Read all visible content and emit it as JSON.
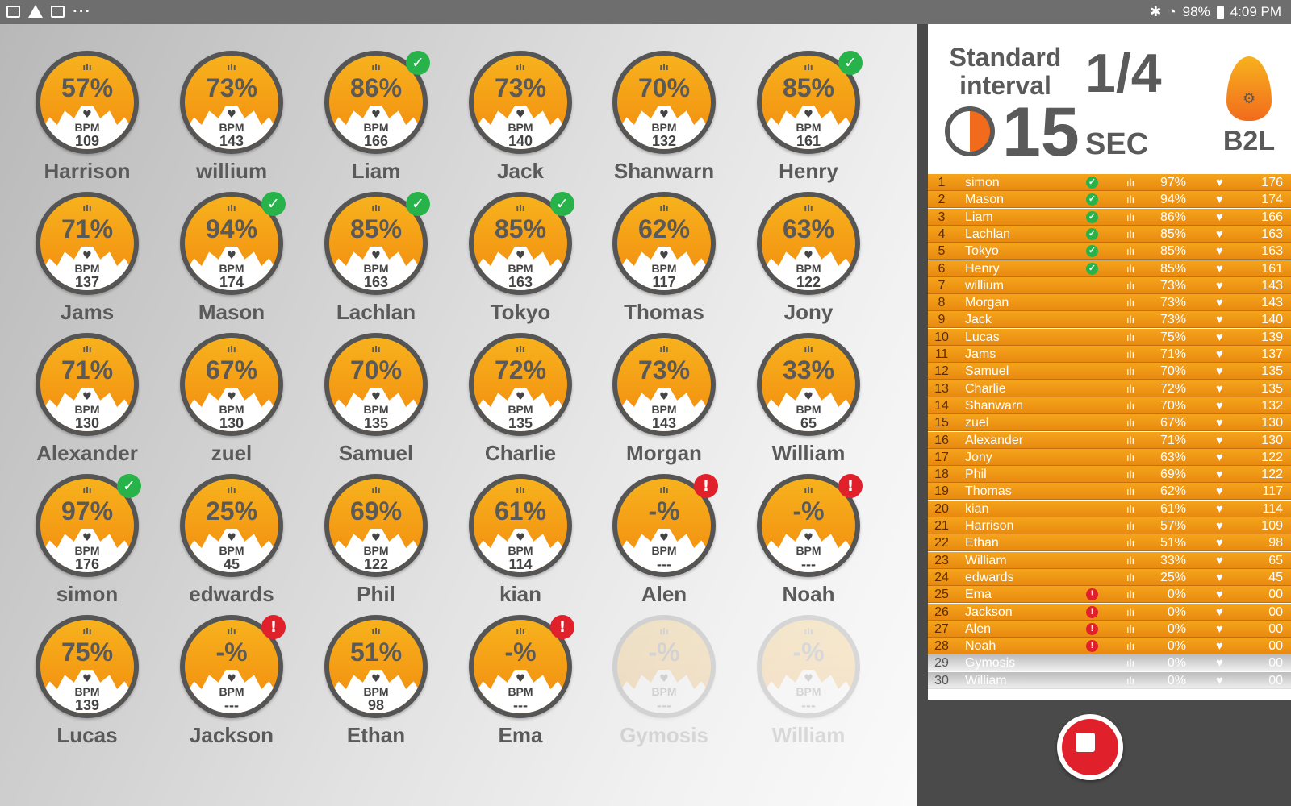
{
  "status_bar": {
    "left_icons": [
      "image-icon",
      "warning-icon",
      "mail-icon",
      "more-dots-icon"
    ],
    "dots": "···",
    "battery": "98%",
    "time": "4:09 PM"
  },
  "header": {
    "interval_line1": "Standard",
    "interval_line2": "interval",
    "round": "1/4",
    "seconds": "15",
    "seconds_unit": "SEC",
    "logo_text": "B2L"
  },
  "colors": {
    "accent_orange": "#f7a21b",
    "check_green": "#27b34a",
    "alert_red": "#e0202a",
    "text_gray": "#5a5a5a"
  },
  "bpm_label": "BPM",
  "players": [
    {
      "name": "Harrison",
      "pct": "57%",
      "bpm": "109",
      "status": ""
    },
    {
      "name": "willium",
      "pct": "73%",
      "bpm": "143",
      "status": ""
    },
    {
      "name": "Liam",
      "pct": "86%",
      "bpm": "166",
      "status": "ok"
    },
    {
      "name": "Jack",
      "pct": "73%",
      "bpm": "140",
      "status": ""
    },
    {
      "name": "Shanwarn",
      "pct": "70%",
      "bpm": "132",
      "status": ""
    },
    {
      "name": "Henry",
      "pct": "85%",
      "bpm": "161",
      "status": "ok"
    },
    {
      "name": "Jams",
      "pct": "71%",
      "bpm": "137",
      "status": ""
    },
    {
      "name": "Mason",
      "pct": "94%",
      "bpm": "174",
      "status": "ok"
    },
    {
      "name": "Lachlan",
      "pct": "85%",
      "bpm": "163",
      "status": "ok"
    },
    {
      "name": "Tokyo",
      "pct": "85%",
      "bpm": "163",
      "status": "ok"
    },
    {
      "name": "Thomas",
      "pct": "62%",
      "bpm": "117",
      "status": ""
    },
    {
      "name": "Jony",
      "pct": "63%",
      "bpm": "122",
      "status": ""
    },
    {
      "name": "Alexander",
      "pct": "71%",
      "bpm": "130",
      "status": ""
    },
    {
      "name": "zuel",
      "pct": "67%",
      "bpm": "130",
      "status": ""
    },
    {
      "name": "Samuel",
      "pct": "70%",
      "bpm": "135",
      "status": ""
    },
    {
      "name": "Charlie",
      "pct": "72%",
      "bpm": "135",
      "status": ""
    },
    {
      "name": "Morgan",
      "pct": "73%",
      "bpm": "143",
      "status": ""
    },
    {
      "name": "William",
      "pct": "33%",
      "bpm": "65",
      "status": ""
    },
    {
      "name": "simon",
      "pct": "97%",
      "bpm": "176",
      "status": "ok"
    },
    {
      "name": "edwards",
      "pct": "25%",
      "bpm": "45",
      "status": ""
    },
    {
      "name": "Phil",
      "pct": "69%",
      "bpm": "122",
      "status": ""
    },
    {
      "name": "kian",
      "pct": "61%",
      "bpm": "114",
      "status": ""
    },
    {
      "name": "Alen",
      "pct": "-%",
      "bpm": "---",
      "status": "warn"
    },
    {
      "name": "Noah",
      "pct": "-%",
      "bpm": "---",
      "status": "warn"
    },
    {
      "name": "Lucas",
      "pct": "75%",
      "bpm": "139",
      "status": ""
    },
    {
      "name": "Jackson",
      "pct": "-%",
      "bpm": "---",
      "status": "warn"
    },
    {
      "name": "Ethan",
      "pct": "51%",
      "bpm": "98",
      "status": ""
    },
    {
      "name": "Ema",
      "pct": "-%",
      "bpm": "---",
      "status": "warn"
    },
    {
      "name": "Gymosis",
      "pct": "-%",
      "bpm": "---",
      "status": "inactive"
    },
    {
      "name": "William",
      "pct": "-%",
      "bpm": "---",
      "status": "inactive"
    }
  ],
  "leaderboard": [
    {
      "rank": "1",
      "name": "simon",
      "status": "ok",
      "pct": "97%",
      "bpm": "176"
    },
    {
      "rank": "2",
      "name": "Mason",
      "status": "ok",
      "pct": "94%",
      "bpm": "174"
    },
    {
      "rank": "3",
      "name": "Liam",
      "status": "ok",
      "pct": "86%",
      "bpm": "166"
    },
    {
      "rank": "4",
      "name": "Lachlan",
      "status": "ok",
      "pct": "85%",
      "bpm": "163"
    },
    {
      "rank": "5",
      "name": "Tokyo",
      "status": "ok",
      "pct": "85%",
      "bpm": "163"
    },
    {
      "rank": "6",
      "name": "Henry",
      "status": "ok",
      "pct": "85%",
      "bpm": "161"
    },
    {
      "rank": "7",
      "name": "willium",
      "status": "",
      "pct": "73%",
      "bpm": "143"
    },
    {
      "rank": "8",
      "name": "Morgan",
      "status": "",
      "pct": "73%",
      "bpm": "143"
    },
    {
      "rank": "9",
      "name": "Jack",
      "status": "",
      "pct": "73%",
      "bpm": "140"
    },
    {
      "rank": "10",
      "name": "Lucas",
      "status": "",
      "pct": "75%",
      "bpm": "139"
    },
    {
      "rank": "11",
      "name": "Jams",
      "status": "",
      "pct": "71%",
      "bpm": "137"
    },
    {
      "rank": "12",
      "name": "Samuel",
      "status": "",
      "pct": "70%",
      "bpm": "135"
    },
    {
      "rank": "13",
      "name": "Charlie",
      "status": "",
      "pct": "72%",
      "bpm": "135"
    },
    {
      "rank": "14",
      "name": "Shanwarn",
      "status": "",
      "pct": "70%",
      "bpm": "132"
    },
    {
      "rank": "15",
      "name": "zuel",
      "status": "",
      "pct": "67%",
      "bpm": "130"
    },
    {
      "rank": "16",
      "name": "Alexander",
      "status": "",
      "pct": "71%",
      "bpm": "130"
    },
    {
      "rank": "17",
      "name": "Jony",
      "status": "",
      "pct": "63%",
      "bpm": "122"
    },
    {
      "rank": "18",
      "name": "Phil",
      "status": "",
      "pct": "69%",
      "bpm": "122"
    },
    {
      "rank": "19",
      "name": "Thomas",
      "status": "",
      "pct": "62%",
      "bpm": "117"
    },
    {
      "rank": "20",
      "name": "kian",
      "status": "",
      "pct": "61%",
      "bpm": "114"
    },
    {
      "rank": "21",
      "name": "Harrison",
      "status": "",
      "pct": "57%",
      "bpm": "109"
    },
    {
      "rank": "22",
      "name": "Ethan",
      "status": "",
      "pct": "51%",
      "bpm": "98"
    },
    {
      "rank": "23",
      "name": "William",
      "status": "",
      "pct": "33%",
      "bpm": "65"
    },
    {
      "rank": "24",
      "name": "edwards",
      "status": "",
      "pct": "25%",
      "bpm": "45"
    },
    {
      "rank": "25",
      "name": "Ema",
      "status": "warn",
      "pct": "0%",
      "bpm": "00"
    },
    {
      "rank": "26",
      "name": "Jackson",
      "status": "warn",
      "pct": "0%",
      "bpm": "00"
    },
    {
      "rank": "27",
      "name": "Alen",
      "status": "warn",
      "pct": "0%",
      "bpm": "00"
    },
    {
      "rank": "28",
      "name": "Noah",
      "status": "warn",
      "pct": "0%",
      "bpm": "00"
    },
    {
      "rank": "29",
      "name": "Gymosis",
      "status": "inactive",
      "pct": "0%",
      "bpm": "00"
    },
    {
      "rank": "30",
      "name": "William",
      "status": "inactive",
      "pct": "0%",
      "bpm": "00"
    }
  ],
  "stop_button_icon": "stop-icon"
}
